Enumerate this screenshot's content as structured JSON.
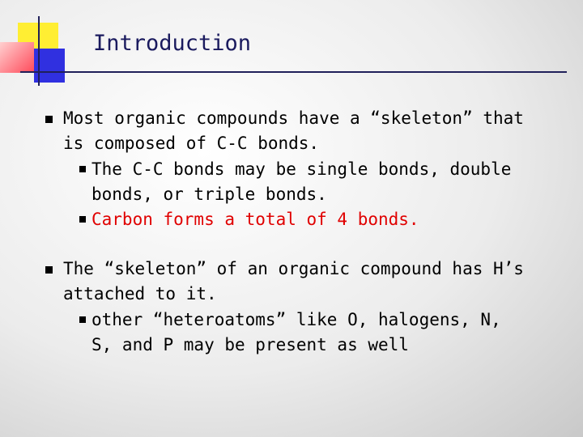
{
  "title": "Introduction",
  "bullets": [
    {
      "text": "Most organic compounds have a “skeleton” that is composed of C-C bonds.",
      "subbullets": [
        "The C-C bonds may be single bonds, double bonds, or triple bonds.",
        "Carbon forms a total of 4 bonds."
      ]
    },
    {
      "text": "The “skeleton” of an organic compound has H’s attached to it.",
      "subbullets": [
        "other “heteroatoms” like O, halogens, N, S, and P may be present as well"
      ]
    }
  ]
}
